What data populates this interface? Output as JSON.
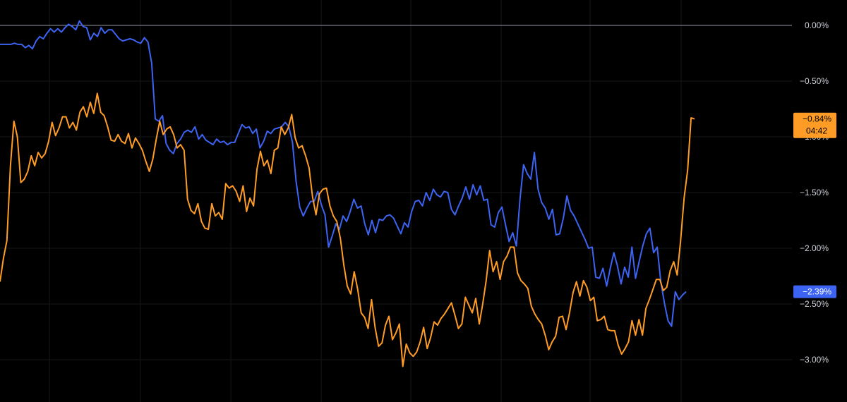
{
  "chart_data": {
    "type": "line",
    "title": "",
    "xlabel": "",
    "ylabel": "",
    "ylim": [
      -3.3,
      0.15
    ],
    "y_ticks": [
      {
        "value": 0.0,
        "label": "0.00%"
      },
      {
        "value": -0.5,
        "label": "−0.50%"
      },
      {
        "value": -1.0,
        "label": "−1.00%"
      },
      {
        "value": -1.5,
        "label": "−1.50%"
      },
      {
        "value": -2.0,
        "label": "−2.00%"
      },
      {
        "value": -2.5,
        "label": "−2.50%"
      },
      {
        "value": -3.0,
        "label": "−3.00%"
      }
    ],
    "grid": true,
    "zero_line": true,
    "series": [
      {
        "color": "#3d63f2",
        "last_value_label": "−2.39%",
        "values": [
          -0.17,
          -0.17,
          -0.17,
          -0.17,
          -0.16,
          -0.17,
          -0.17,
          -0.2,
          -0.18,
          -0.21,
          -0.14,
          -0.1,
          -0.12,
          -0.07,
          -0.03,
          -0.06,
          -0.03,
          -0.06,
          -0.02,
          0.01,
          -0.01,
          -0.04,
          0.04,
          -0.01,
          -0.02,
          -0.13,
          -0.07,
          -0.1,
          -0.02,
          -0.07,
          -0.04,
          -0.04,
          -0.08,
          -0.12,
          -0.14,
          -0.13,
          -0.12,
          -0.13,
          -0.15,
          -0.16,
          -0.11,
          -0.15,
          -0.34,
          -0.84,
          -0.86,
          -0.81,
          -1.06,
          -1.12,
          -1.15,
          -1.06,
          -1.02,
          -0.96,
          -0.94,
          -0.96,
          -0.91,
          -1.02,
          -0.98,
          -1.03,
          -1.05,
          -1.07,
          -1.02,
          -1.05,
          -1.04,
          -1.07,
          -1.05,
          -1.05,
          -0.97,
          -0.89,
          -0.92,
          -0.91,
          -0.97,
          -0.93,
          -1.1,
          -1.04,
          -0.95,
          -0.97,
          -0.93,
          -0.92,
          -0.91,
          -0.87,
          -0.91,
          -1.05,
          -1.4,
          -1.63,
          -1.71,
          -1.64,
          -1.58,
          -1.58,
          -1.49,
          -1.61,
          -1.7,
          -1.99,
          -1.89,
          -1.78,
          -1.83,
          -1.71,
          -1.76,
          -1.67,
          -1.56,
          -1.64,
          -1.62,
          -1.78,
          -1.88,
          -1.75,
          -1.86,
          -1.74,
          -1.75,
          -1.71,
          -1.7,
          -1.73,
          -1.8,
          -1.87,
          -1.77,
          -1.81,
          -1.67,
          -1.58,
          -1.57,
          -1.62,
          -1.5,
          -1.57,
          -1.47,
          -1.52,
          -1.54,
          -1.49,
          -1.5,
          -1.65,
          -1.7,
          -1.62,
          -1.55,
          -1.45,
          -1.56,
          -1.43,
          -1.52,
          -1.44,
          -1.57,
          -1.56,
          -1.79,
          -1.81,
          -1.68,
          -1.63,
          -1.79,
          -1.94,
          -1.86,
          -1.98,
          -1.56,
          -1.25,
          -1.33,
          -1.38,
          -1.14,
          -1.47,
          -1.59,
          -1.64,
          -1.74,
          -1.65,
          -1.88,
          -1.87,
          -1.73,
          -1.53,
          -1.66,
          -1.71,
          -1.78,
          -1.85,
          -1.92,
          -2.0,
          -1.99,
          -2.26,
          -2.27,
          -2.18,
          -2.34,
          -2.18,
          -2.04,
          -2.16,
          -2.32,
          -2.17,
          -2.26,
          -1.99,
          -2.27,
          -2.12,
          -1.98,
          -1.87,
          -1.82,
          -2.04,
          -1.99,
          -2.3,
          -2.49,
          -2.65,
          -2.7,
          -2.39,
          -2.46,
          -2.42,
          -2.39
        ]
      },
      {
        "color": "#ff9c25",
        "last_value_label": "−0.84%",
        "time_label": "04:42",
        "values": [
          -2.3,
          -2.09,
          -1.93,
          -1.26,
          -0.86,
          -1.0,
          -1.41,
          -1.38,
          -1.31,
          -1.17,
          -1.26,
          -1.14,
          -1.19,
          -1.15,
          -1.04,
          -0.87,
          -0.99,
          -0.92,
          -0.82,
          -0.82,
          -0.92,
          -0.87,
          -0.94,
          -0.78,
          -0.73,
          -0.82,
          -0.69,
          -0.79,
          -0.61,
          -0.78,
          -0.81,
          -0.91,
          -1.03,
          -1.04,
          -0.98,
          -1.04,
          -1.06,
          -0.97,
          -1.1,
          -1.01,
          -1.06,
          -1.12,
          -1.22,
          -1.31,
          -1.2,
          -1.02,
          -0.86,
          -0.98,
          -0.93,
          -0.91,
          -0.98,
          -1.1,
          -1.07,
          -1.12,
          -1.56,
          -1.66,
          -1.69,
          -1.6,
          -1.76,
          -1.82,
          -1.83,
          -1.6,
          -1.71,
          -1.68,
          -1.74,
          -1.42,
          -1.46,
          -1.44,
          -1.49,
          -1.58,
          -1.44,
          -1.67,
          -1.55,
          -1.62,
          -1.29,
          -1.13,
          -1.26,
          -1.21,
          -1.33,
          -1.12,
          -1.1,
          -0.91,
          -0.98,
          -0.92,
          -0.8,
          -1.01,
          -1.1,
          -1.08,
          -1.17,
          -1.28,
          -1.54,
          -1.7,
          -1.51,
          -1.47,
          -1.46,
          -1.62,
          -1.71,
          -1.76,
          -1.91,
          -2.15,
          -2.34,
          -2.41,
          -2.21,
          -2.37,
          -2.58,
          -2.62,
          -2.72,
          -2.46,
          -2.71,
          -2.88,
          -2.85,
          -2.69,
          -2.61,
          -2.82,
          -2.76,
          -2.68,
          -3.06,
          -2.86,
          -2.94,
          -2.97,
          -2.93,
          -2.84,
          -2.71,
          -2.9,
          -2.8,
          -2.66,
          -2.69,
          -2.63,
          -2.59,
          -2.54,
          -2.49,
          -2.6,
          -2.72,
          -2.68,
          -2.44,
          -2.51,
          -2.58,
          -2.45,
          -2.68,
          -2.5,
          -2.29,
          -2.02,
          -2.21,
          -2.12,
          -2.28,
          -2.12,
          -2.07,
          -1.99,
          -1.99,
          -2.22,
          -2.29,
          -2.32,
          -2.36,
          -2.52,
          -2.59,
          -2.64,
          -2.68,
          -2.78,
          -2.91,
          -2.84,
          -2.79,
          -2.62,
          -2.61,
          -2.73,
          -2.58,
          -2.4,
          -2.3,
          -2.43,
          -2.29,
          -2.35,
          -2.47,
          -2.44,
          -2.65,
          -2.64,
          -2.61,
          -2.73,
          -2.74,
          -2.74,
          -2.87,
          -2.95,
          -2.9,
          -2.84,
          -2.65,
          -2.78,
          -2.64,
          -2.78,
          -2.54,
          -2.46,
          -2.37,
          -2.28,
          -2.28,
          -2.38,
          -2.35,
          -2.2,
          -2.12,
          -2.24,
          -1.93,
          -1.55,
          -1.3,
          -0.83,
          -0.84
        ]
      }
    ]
  }
}
